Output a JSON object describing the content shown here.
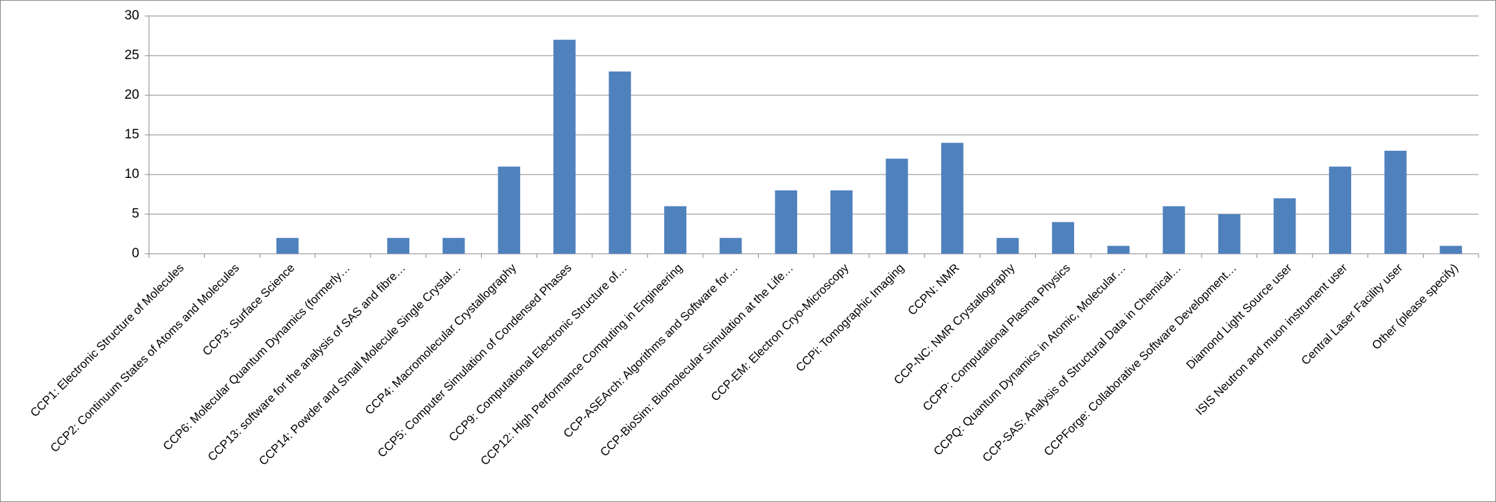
{
  "chart_data": {
    "type": "bar",
    "categories": [
      "CCP1: Electronic Structure of Molecules",
      "CCP2: Continuum States of Atoms and Molecules",
      "CCP3: Surface Science",
      "CCP6: Molecular Quantum Dynamics (formerly…",
      "CCP13: software for the analysis of SAS and fibre…",
      "CCP14: Powder and Small Molecule Single Crystal…",
      "CCP4: Macromolecular Crystallography",
      "CCP5: Computer Simulation of Condensed Phases",
      "CCP9: Computational Electronic Structure of…",
      "CCP12: High Performance Computing in Engineering",
      "CCP-ASEArch: Algorithms and Software for…",
      "CCP-BioSim: Biomolecular Simulation at the Life…",
      "CCP-EM: Electron Cryo-Microscopy",
      "CCPi: Tomographic Imaging",
      "CCPN: NMR",
      "CCP-NC: NMR Crystallography",
      "CCPP: Computational Plasma Physics",
      "CCPQ: Quantum Dynamics in Atomic, Molecular…",
      "CCP-SAS: Analysis of Structural Data in Chemical…",
      "CCPForge: Collaborative Software Development…",
      "Diamond Light Source user",
      "ISIS Neutron and muon instrument user",
      "Central Laser Facility user",
      "Other (please specify)"
    ],
    "values": [
      0,
      0,
      2,
      0,
      2,
      2,
      11,
      27,
      23,
      6,
      2,
      8,
      8,
      12,
      14,
      2,
      4,
      1,
      6,
      5,
      7,
      11,
      13,
      1
    ],
    "color": "#4f81bd",
    "ylim": [
      0,
      30
    ],
    "yticks": [
      0,
      5,
      10,
      15,
      20,
      25,
      30
    ],
    "grid": true
  }
}
